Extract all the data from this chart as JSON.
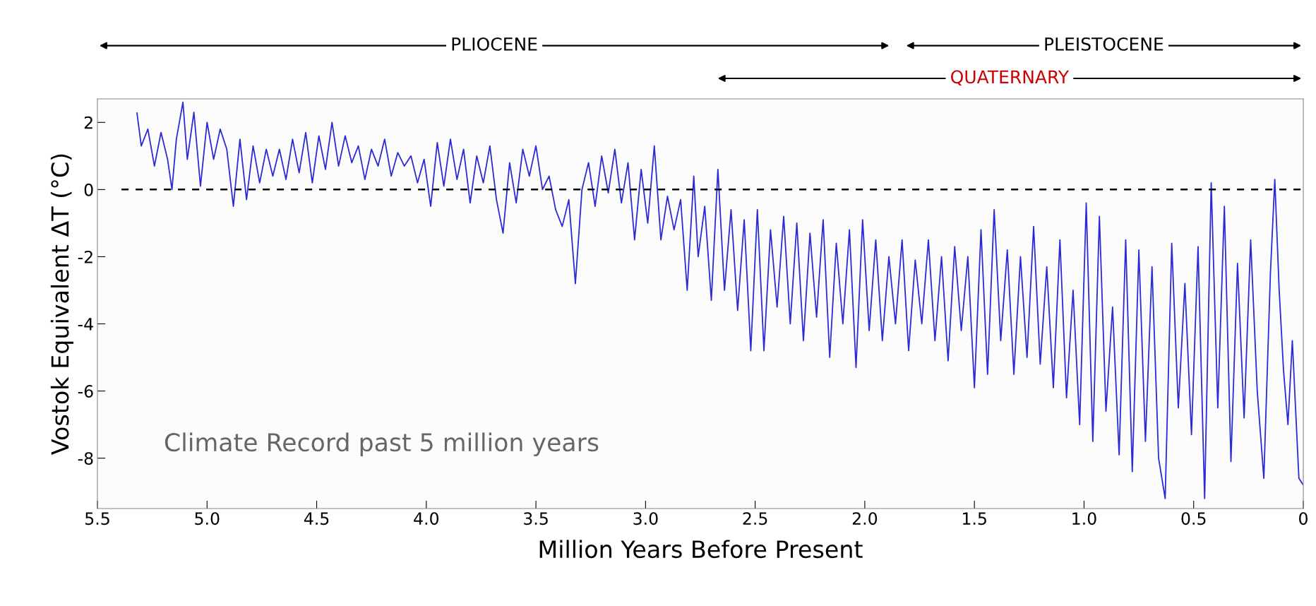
{
  "chart_data": {
    "type": "line",
    "xlabel": "Million Years Before Present",
    "ylabel": "Vostok Equivalent ΔT (°C)",
    "xlim": [
      5.5,
      0
    ],
    "xticks": [
      {
        "value": 5.5,
        "label": "5.5"
      },
      {
        "value": 5.0,
        "label": "5.0"
      },
      {
        "value": 4.5,
        "label": "4.5"
      },
      {
        "value": 4.0,
        "label": "4.0"
      },
      {
        "value": 3.5,
        "label": "3.5"
      },
      {
        "value": 3.0,
        "label": "3.0"
      },
      {
        "value": 2.5,
        "label": "2.5"
      },
      {
        "value": 2.0,
        "label": "2.0"
      },
      {
        "value": 1.5,
        "label": "1.5"
      },
      {
        "value": 1.0,
        "label": "1.0"
      },
      {
        "value": 0.5,
        "label": "0.5"
      },
      0
    ],
    "ylim": [
      -9.5,
      2.7
    ],
    "yticks": [
      -8,
      -6,
      -4,
      -2,
      0,
      2
    ],
    "grid": false,
    "legend": false,
    "series": [
      {
        "color": "#2b2bd6",
        "x": [
          5.32,
          5.3,
          5.27,
          5.24,
          5.21,
          5.18,
          5.16,
          5.14,
          5.11,
          5.09,
          5.06,
          5.03,
          5.0,
          4.97,
          4.94,
          4.91,
          4.88,
          4.85,
          4.82,
          4.79,
          4.76,
          4.73,
          4.7,
          4.67,
          4.64,
          4.61,
          4.58,
          4.55,
          4.52,
          4.49,
          4.46,
          4.43,
          4.4,
          4.37,
          4.34,
          4.31,
          4.28,
          4.25,
          4.22,
          4.19,
          4.16,
          4.13,
          4.1,
          4.07,
          4.04,
          4.01,
          3.98,
          3.95,
          3.92,
          3.89,
          3.86,
          3.83,
          3.8,
          3.77,
          3.74,
          3.71,
          3.68,
          3.65,
          3.62,
          3.59,
          3.56,
          3.53,
          3.5,
          3.47,
          3.44,
          3.41,
          3.38,
          3.35,
          3.32,
          3.29,
          3.26,
          3.23,
          3.2,
          3.17,
          3.14,
          3.11,
          3.08,
          3.05,
          3.02,
          2.99,
          2.96,
          2.93,
          2.9,
          2.87,
          2.84,
          2.81,
          2.78,
          2.76,
          2.73,
          2.7,
          2.67,
          2.64,
          2.61,
          2.58,
          2.55,
          2.52,
          2.49,
          2.46,
          2.43,
          2.4,
          2.37,
          2.34,
          2.31,
          2.28,
          2.25,
          2.22,
          2.19,
          2.16,
          2.13,
          2.1,
          2.07,
          2.04,
          2.01,
          1.98,
          1.95,
          1.92,
          1.89,
          1.86,
          1.83,
          1.8,
          1.77,
          1.74,
          1.71,
          1.68,
          1.65,
          1.62,
          1.59,
          1.56,
          1.53,
          1.5,
          1.47,
          1.44,
          1.41,
          1.38,
          1.35,
          1.32,
          1.29,
          1.26,
          1.23,
          1.2,
          1.17,
          1.14,
          1.11,
          1.08,
          1.05,
          1.02,
          0.99,
          0.96,
          0.93,
          0.9,
          0.87,
          0.84,
          0.81,
          0.78,
          0.75,
          0.72,
          0.69,
          0.66,
          0.63,
          0.6,
          0.57,
          0.54,
          0.51,
          0.48,
          0.45,
          0.42,
          0.39,
          0.36,
          0.33,
          0.3,
          0.27,
          0.24,
          0.21,
          0.18,
          0.15,
          0.13,
          0.11,
          0.09,
          0.07,
          0.05,
          0.02,
          0.0
        ],
        "values": [
          2.3,
          1.3,
          1.8,
          0.7,
          1.7,
          0.9,
          0.0,
          1.5,
          2.6,
          0.9,
          2.3,
          0.1,
          2.0,
          0.9,
          1.8,
          1.2,
          -0.5,
          1.5,
          -0.3,
          1.3,
          0.2,
          1.2,
          0.4,
          1.2,
          0.3,
          1.5,
          0.5,
          1.7,
          0.2,
          1.6,
          0.6,
          2.0,
          0.7,
          1.6,
          0.8,
          1.3,
          0.3,
          1.2,
          0.7,
          1.5,
          0.4,
          1.1,
          0.7,
          1.0,
          0.2,
          0.9,
          -0.5,
          1.4,
          0.1,
          1.5,
          0.3,
          1.2,
          -0.4,
          1.0,
          0.2,
          1.3,
          -0.3,
          -1.3,
          0.8,
          -0.4,
          1.2,
          0.4,
          1.3,
          0.0,
          0.4,
          -0.6,
          -1.1,
          -0.3,
          -2.8,
          0.0,
          0.8,
          -0.5,
          1.0,
          -0.1,
          1.2,
          -0.4,
          0.8,
          -1.5,
          0.6,
          -1.0,
          1.3,
          -1.5,
          -0.2,
          -1.2,
          -0.3,
          -3.0,
          0.4,
          -2.0,
          -0.5,
          -3.3,
          0.6,
          -3.0,
          -0.6,
          -3.6,
          -0.9,
          -4.8,
          -0.6,
          -4.8,
          -1.2,
          -3.5,
          -0.8,
          -4.0,
          -1.0,
          -4.5,
          -1.3,
          -3.8,
          -0.9,
          -5.0,
          -1.6,
          -4.0,
          -1.2,
          -5.3,
          -0.9,
          -4.2,
          -1.5,
          -4.5,
          -2.0,
          -4.0,
          -1.5,
          -4.8,
          -2.1,
          -4.0,
          -1.5,
          -4.5,
          -2.0,
          -5.1,
          -1.7,
          -4.2,
          -2.0,
          -5.9,
          -1.2,
          -5.5,
          -0.6,
          -4.5,
          -1.8,
          -5.5,
          -2.0,
          -5.0,
          -1.1,
          -5.2,
          -2.3,
          -5.9,
          -1.5,
          -6.2,
          -3.0,
          -7.0,
          -0.4,
          -7.5,
          -0.8,
          -6.6,
          -3.5,
          -7.9,
          -1.5,
          -8.4,
          -1.8,
          -7.5,
          -2.3,
          -8.0,
          -9.2,
          -1.6,
          -6.5,
          -2.8,
          -7.3,
          -1.7,
          -9.2,
          0.2,
          -6.5,
          -0.5,
          -8.1,
          -2.2,
          -6.8,
          -1.5,
          -6.0,
          -8.6,
          -2.5,
          0.3,
          -3.0,
          -5.4,
          -7.0,
          -4.5,
          -8.6,
          -8.8
        ]
      }
    ],
    "ref_lines": [
      {
        "axis": "y",
        "value": 0,
        "color": "#000000",
        "line_style": "dashed"
      }
    ],
    "annotations": [
      "Climate Record past 5 million years",
      "PLIOCENE",
      "PLEISTOCENE",
      "QUATERNARY"
    ]
  }
}
